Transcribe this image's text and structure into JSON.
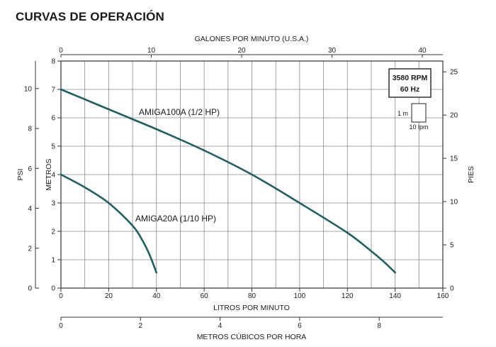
{
  "title": "CURVAS DE OPERACIÓN",
  "colors": {
    "curve": "#1f5f63",
    "grid": "#8a8a8a",
    "text": "#1a1a1a"
  },
  "chart_data": {
    "type": "line",
    "grid": true,
    "x_primary": {
      "label": "LITROS POR MINUTO",
      "range": [
        0,
        160
      ],
      "ticks": [
        0,
        20,
        40,
        60,
        80,
        100,
        120,
        140,
        160
      ],
      "minor_step": 10
    },
    "x_top": {
      "label": "GALONES POR MINUTO (U.S.A.)",
      "ticks": [
        0,
        10,
        20,
        30,
        40
      ],
      "range": [
        0,
        42.27
      ]
    },
    "x_bottom": {
      "label": "METROS CÚBICOS POR HORA",
      "ticks": [
        0,
        2,
        4,
        6,
        8
      ],
      "range": [
        0,
        9.6
      ]
    },
    "y_primary": {
      "label": "METROS",
      "range": [
        0,
        8
      ],
      "ticks": [
        0,
        1,
        2,
        3,
        4,
        5,
        6,
        7,
        8
      ]
    },
    "y_left_outer": {
      "label": "PSI",
      "ticks": [
        0,
        2,
        4,
        6,
        8,
        10
      ],
      "range": [
        0,
        11.38
      ]
    },
    "y_right": {
      "label": "PIES",
      "ticks": [
        0,
        5,
        10,
        15,
        20,
        25
      ],
      "range": [
        0,
        26.25
      ]
    },
    "series": [
      {
        "name": "AMIGA100A (1/2 HP)",
        "x": [
          0,
          20,
          30,
          40,
          60,
          80,
          100,
          120,
          130,
          135,
          140
        ],
        "y": [
          7.0,
          6.3,
          5.95,
          5.6,
          4.85,
          4.0,
          3.0,
          1.95,
          1.3,
          0.95,
          0.55
        ]
      },
      {
        "name": "AMIGA20A (1/10 HP)",
        "x": [
          0,
          10,
          20,
          30,
          34,
          37,
          40
        ],
        "y": [
          4.0,
          3.55,
          3.0,
          2.2,
          1.7,
          1.2,
          0.55
        ]
      }
    ],
    "annotations": {
      "speed_box": [
        "3580 RPM",
        "60 Hz"
      ],
      "scale_box": {
        "vertical": "1 m",
        "horizontal": "10 lpm"
      }
    }
  }
}
